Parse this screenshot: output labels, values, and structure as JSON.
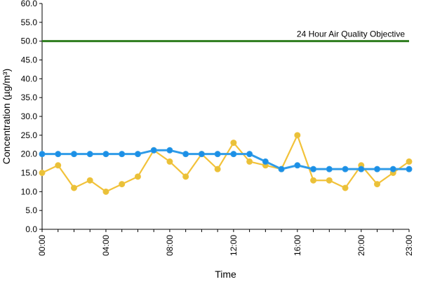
{
  "chart_data": {
    "type": "line",
    "xlabel": "Time",
    "ylabel": "Concentration (µg/m³)",
    "x": [
      "00:00",
      "01:00",
      "02:00",
      "03:00",
      "04:00",
      "05:00",
      "06:00",
      "07:00",
      "08:00",
      "09:00",
      "10:00",
      "11:00",
      "12:00",
      "13:00",
      "14:00",
      "15:00",
      "16:00",
      "17:00",
      "18:00",
      "19:00",
      "20:00",
      "21:00",
      "22:00",
      "23:00"
    ],
    "x_tick_labels": [
      "00:00",
      "04:00",
      "08:00",
      "12:00",
      "16:00",
      "20:00",
      "23:00"
    ],
    "ylim": [
      0,
      60
    ],
    "y_tick_labels": [
      "0.0",
      "5.0",
      "10.0",
      "15.0",
      "20.0",
      "25.0",
      "30.0",
      "35.0",
      "40.0",
      "45.0",
      "50.0",
      "55.0",
      "60.0"
    ],
    "grid": false,
    "legend": "none",
    "series": [
      {
        "color": "#F2C23A",
        "marker_fill": "#E8C13A",
        "values": [
          15,
          17,
          11,
          13,
          10,
          12,
          14,
          21,
          18,
          14,
          20,
          16,
          23,
          18,
          17,
          16,
          25,
          13,
          13,
          11,
          17,
          12,
          15,
          18
        ]
      },
      {
        "color": "#2F9BE8",
        "marker_fill": "#1B8FE6",
        "values": [
          20,
          20,
          20,
          20,
          20,
          20,
          20,
          21,
          21,
          20,
          20,
          20,
          20,
          20,
          18,
          16,
          17,
          16,
          16,
          16,
          16,
          16,
          16,
          16
        ]
      }
    ],
    "reference_line": {
      "value": 50,
      "label": "24 Hour Air Quality Objective",
      "color": "#2E7D1E"
    }
  }
}
